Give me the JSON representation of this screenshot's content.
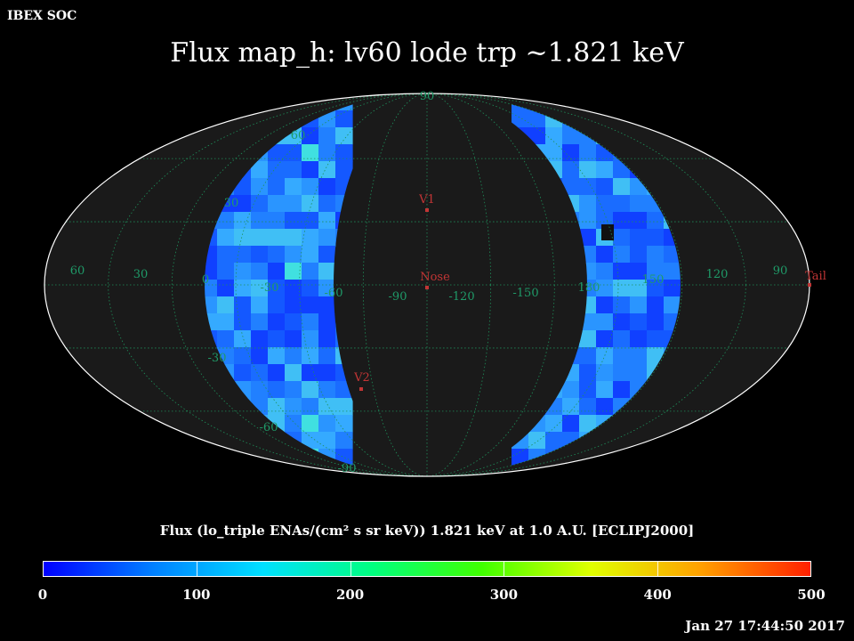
{
  "header": {
    "corner_label": "IBEX SOC",
    "title": "Flux   map_h: lv60 lode trp ~1.821 keV"
  },
  "map": {
    "projection": "Mollweide (ecliptic J2000)",
    "background_color": "#1a1a1a",
    "outline_color": "#ffffff",
    "grid_color": "#1e8f5a",
    "label_color": "#1f9a68",
    "marker_color": "#c23535",
    "longitude_labels": [
      "60",
      "30",
      "0",
      "-30",
      "-60",
      "-90",
      "-120",
      "-150",
      "180",
      "150",
      "120",
      "90"
    ],
    "latitude_labels": [
      "90",
      "60",
      "30",
      "-30",
      "-60",
      "-90"
    ],
    "markers": [
      {
        "name": "V1"
      },
      {
        "name": "Nose"
      },
      {
        "name": "V2"
      },
      {
        "name": "Tail"
      }
    ],
    "data_swath_colors": [
      "#1040ff",
      "#1458ff",
      "#1a6cff",
      "#2180ff",
      "#2a95ff",
      "#35aaff",
      "#40bff5"
    ],
    "notes": "Flux shown in two crescent-shaped bands; center of map (no data) is dark gray"
  },
  "colorbar": {
    "caption": "Flux (lo_triple ENAs/(cm² s sr keV))  1.821 keV at 1.0 A.U. [ECLIPJ2000]",
    "min": 0,
    "max": 500,
    "tick_labels": [
      "0",
      "100",
      "200",
      "300",
      "400",
      "500"
    ],
    "gradient_colors": [
      "#0000ff",
      "#0080ff",
      "#00e0ff",
      "#00ff80",
      "#40ff00",
      "#e0ff00",
      "#ffa000",
      "#ff2000"
    ]
  },
  "footer": {
    "timestamp": "Jan 27 17:44:50 2017"
  }
}
